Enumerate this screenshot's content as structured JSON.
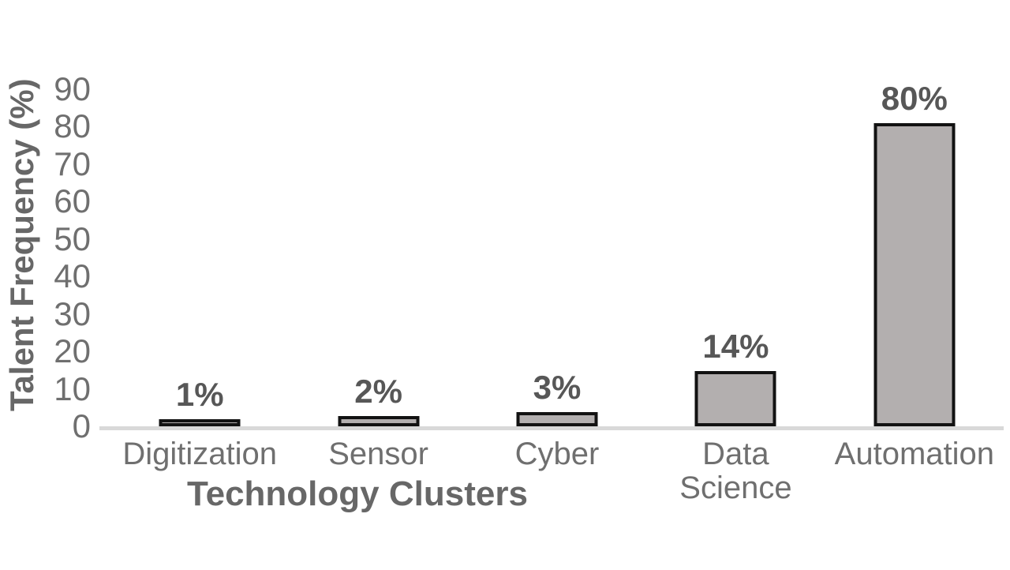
{
  "chart_data": {
    "type": "bar",
    "title": "",
    "categories": [
      "Digitization",
      "Sensor",
      "Cyber",
      "Data\nScience",
      "Automation"
    ],
    "values": [
      1,
      2,
      3,
      14,
      80
    ],
    "data_labels": [
      "1%",
      "2%",
      "3%",
      "14%",
      "80%"
    ],
    "xlabel": "Technology Clusters",
    "ylabel": "Talent Frequency (%)",
    "ylim": [
      0,
      90
    ],
    "yticks": [
      0,
      10,
      20,
      30,
      40,
      50,
      60,
      70,
      80,
      90
    ],
    "grid": false,
    "legend": "none",
    "layout": {
      "y_axis_side": "left",
      "data_labels_position": "above-bar"
    },
    "colors": {
      "background": "#ffffff",
      "bar_fill": "#b3afaf",
      "bar_border": "#121212",
      "axis_line": "#d9d9d9",
      "tick_text": "#6f6f6f",
      "label_text": "#575757",
      "title_text": "#676767"
    }
  }
}
